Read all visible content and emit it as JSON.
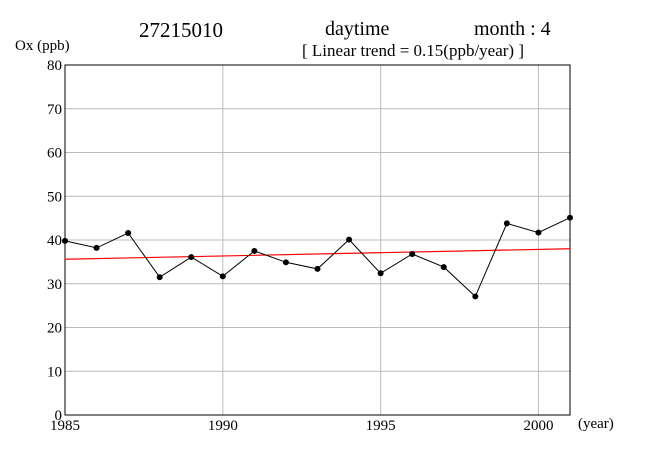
{
  "header": {
    "station": "27215010",
    "period": "daytime",
    "month_label": "month : 4",
    "trend_label": "[ Linear trend = 0.15(ppb/year) ]"
  },
  "chart_data": {
    "type": "line",
    "title": "",
    "xlabel": "(year)",
    "ylabel": "Ox (ppb)",
    "xlim": [
      1985,
      2001
    ],
    "ylim": [
      0,
      80
    ],
    "xticks": [
      1985,
      1990,
      1995,
      2000
    ],
    "yticks": [
      0,
      10,
      20,
      30,
      40,
      50,
      60,
      70,
      80
    ],
    "grid": true,
    "series": [
      {
        "color": "#000000",
        "marker": "circle",
        "x": [
          1985,
          1986,
          1987,
          1988,
          1989,
          1990,
          1991,
          1992,
          1993,
          1994,
          1995,
          1996,
          1997,
          1998,
          1999,
          2000,
          2001
        ],
        "y": [
          39.8,
          38.2,
          41.6,
          31.5,
          36.1,
          31.7,
          37.5,
          34.9,
          33.4,
          40.1,
          32.4,
          36.8,
          33.8,
          27.1,
          43.8,
          41.7,
          45.1
        ]
      }
    ],
    "trend_line": {
      "color": "#ff0000",
      "x": [
        1985,
        2001
      ],
      "y": [
        35.6,
        38.0
      ]
    }
  }
}
